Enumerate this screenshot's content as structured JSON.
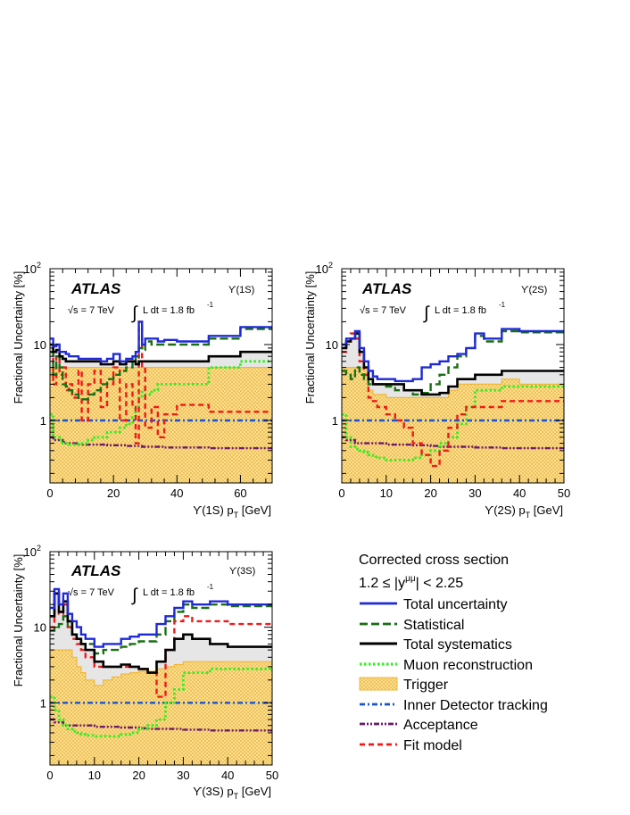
{
  "colors": {
    "total": "#1f2ad6",
    "statistical": "#1a6e14",
    "systematics": "#000000",
    "muon": "#33ee22",
    "trigger_fill": "#f9e4a2",
    "trigger_edge": "#f0b73a",
    "id_tracking": "#1a55cc",
    "acceptance": "#6a1a6e",
    "fit_model": "#ee1b1b",
    "systematics_fill": "#e6e6e6"
  },
  "legend": {
    "title": "Corrected cross section",
    "rapidity": "1.2 ≤ |y^μμ| < 2.25",
    "rapidity_pre": "1.2 ≤ |y",
    "rapidity_sup": "μμ",
    "rapidity_post": "| < 2.25",
    "entries": [
      {
        "key": "total",
        "label": "Total uncertainty",
        "style": "solid"
      },
      {
        "key": "statistical",
        "label": "Statistical",
        "style": "dash"
      },
      {
        "key": "systematics",
        "label": "Total systematics",
        "style": "solid-thick"
      },
      {
        "key": "muon",
        "label": "Muon reconstruction",
        "style": "dot"
      },
      {
        "key": "trigger",
        "label": "Trigger",
        "style": "hatch"
      },
      {
        "key": "id_tracking",
        "label": "Inner Detector tracking",
        "style": "dashdot"
      },
      {
        "key": "acceptance",
        "label": "Acceptance",
        "style": "dashdotdot"
      },
      {
        "key": "fit_model",
        "label": "Fit model",
        "style": "dash"
      }
    ]
  },
  "annotations": {
    "atlas": "ATLAS",
    "energy": "√s = 7 TeV",
    "lumi": "L dt = 1.8 fb",
    "lumi_sup": "-1",
    "integral": "∫"
  },
  "chart_data": [
    {
      "type": "line",
      "state_label": "ϒ(1S)",
      "ylabel": "Fractional Uncertainty [%]",
      "xlabel_main": "ϒ(1S) p",
      "xlabel_sub": "T",
      "xlabel_unit": " [GeV]",
      "yscale": "log",
      "xlim": [
        0,
        70
      ],
      "ylim": [
        0.15,
        100
      ],
      "xticks": [
        0,
        20,
        40,
        60
      ],
      "edges": [
        0,
        1,
        2,
        3,
        4,
        5,
        6,
        7,
        8,
        9,
        10,
        12,
        14,
        16,
        18,
        20,
        22,
        24,
        26,
        27,
        28,
        29,
        30,
        32,
        34,
        36,
        40,
        50,
        60,
        70
      ],
      "series": {
        "total": [
          12,
          9.5,
          10,
          8,
          8,
          7.5,
          7,
          7,
          7,
          6.5,
          6.5,
          6.5,
          6.5,
          6,
          6.5,
          7.5,
          6,
          6.5,
          7,
          8,
          20,
          10,
          12,
          12,
          11,
          11.5,
          11,
          13,
          17
        ],
        "statistical": [
          8,
          4,
          7,
          5,
          3,
          2.8,
          2.5,
          2.3,
          2.2,
          1.9,
          1.9,
          2.2,
          2.5,
          3,
          3.5,
          4,
          4.5,
          5,
          6,
          7,
          9,
          8.5,
          11,
          10,
          10,
          10,
          10,
          12,
          16
        ],
        "systematics": [
          10,
          8,
          8.5,
          7,
          6.5,
          6,
          6,
          6,
          6,
          6,
          6,
          6,
          6,
          5.5,
          5.5,
          6,
          5.5,
          6,
          6,
          5.5,
          6,
          6,
          6,
          6,
          6,
          6,
          6,
          7,
          8
        ],
        "muon": [
          1.2,
          0.6,
          0.6,
          0.55,
          0.5,
          0.5,
          0.48,
          0.48,
          0.48,
          0.5,
          0.5,
          0.55,
          0.6,
          0.6,
          0.7,
          0.7,
          0.8,
          0.9,
          1.1,
          1.5,
          2,
          2.5,
          2.2,
          2.5,
          3,
          3,
          3,
          5,
          6
        ],
        "trigger": [
          5,
          5,
          5,
          5,
          5,
          5,
          5,
          5,
          5,
          5,
          5,
          5,
          5,
          5,
          5,
          5,
          5,
          5,
          5,
          5,
          5,
          5,
          5,
          5,
          5,
          5,
          5,
          5,
          5
        ],
        "id_tracking": [
          1,
          1,
          1,
          1,
          1,
          1,
          1,
          1,
          1,
          1,
          1,
          1,
          1,
          1,
          1,
          1,
          1,
          1,
          1,
          1,
          1,
          1,
          1,
          1,
          1,
          1,
          1,
          1,
          1
        ],
        "acceptance": [
          0.6,
          0.55,
          0.55,
          0.55,
          0.52,
          0.5,
          0.5,
          0.5,
          0.5,
          0.48,
          0.48,
          0.48,
          0.48,
          0.48,
          0.47,
          0.47,
          0.47,
          0.46,
          0.46,
          0.46,
          0.46,
          0.45,
          0.45,
          0.45,
          0.45,
          0.44,
          0.44,
          0.43,
          0.43
        ],
        "fit_model": [
          8,
          3,
          7,
          4,
          5,
          2.5,
          3,
          2,
          2,
          4.5,
          1,
          3,
          4.5,
          1.5,
          3,
          5,
          1,
          3,
          1.5,
          0.5,
          20,
          5,
          0.8,
          1.5,
          0.6,
          1.2,
          1.6,
          1.3,
          1.3
        ]
      }
    },
    {
      "type": "line",
      "state_label": "ϒ(2S)",
      "ylabel": "Fractional Uncertainty [%]",
      "xlabel_main": "ϒ(2S) p",
      "xlabel_sub": "T",
      "xlabel_unit": " [GeV]",
      "yscale": "log",
      "xlim": [
        0,
        50
      ],
      "ylim": [
        0.15,
        100
      ],
      "xticks": [
        0,
        10,
        20,
        30,
        40,
        50
      ],
      "edges": [
        0,
        1,
        2,
        3,
        4,
        5,
        6,
        7,
        8,
        10,
        12,
        14,
        16,
        18,
        20,
        22,
        24,
        26,
        28,
        30,
        32,
        36,
        40,
        50
      ],
      "series": {
        "total": [
          10,
          12,
          12,
          15,
          9,
          6,
          4.5,
          3.8,
          3.5,
          3.5,
          3.3,
          3.3,
          3.5,
          5,
          5.5,
          6,
          7,
          7.5,
          9,
          14,
          12,
          16,
          15
        ],
        "statistical": [
          4.5,
          4,
          3.5,
          5,
          4,
          3.5,
          3,
          3,
          3,
          2.8,
          2.5,
          2.5,
          2.2,
          2.3,
          3,
          4,
          5,
          7,
          9,
          13,
          11,
          15,
          14.5
        ],
        "systematics": [
          9,
          11,
          12,
          14,
          8,
          5,
          3.5,
          3,
          3,
          3,
          3,
          2.5,
          2.5,
          2.2,
          2.2,
          2.3,
          2.8,
          3.5,
          3.5,
          4,
          4,
          4.5,
          4.5
        ],
        "muon": [
          1.2,
          0.6,
          0.45,
          0.42,
          0.4,
          0.38,
          0.35,
          0.33,
          0.32,
          0.3,
          0.3,
          0.3,
          0.32,
          0.35,
          0.4,
          0.5,
          0.6,
          0.9,
          1.5,
          2.5,
          2.5,
          2.8,
          2.8
        ],
        "trigger": [
          5,
          5,
          5,
          5,
          5,
          5,
          2.5,
          2.2,
          2.2,
          2,
          2,
          2,
          2,
          2,
          2,
          2,
          2.5,
          3,
          3,
          3,
          3,
          3.5,
          3
        ],
        "id_tracking": [
          1,
          1,
          1,
          1,
          1,
          1,
          1,
          1,
          1,
          1,
          1,
          1,
          1,
          1,
          1,
          1,
          1,
          1,
          1,
          1,
          1,
          1,
          1
        ],
        "acceptance": [
          0.6,
          0.55,
          0.55,
          0.5,
          0.5,
          0.5,
          0.5,
          0.5,
          0.5,
          0.48,
          0.48,
          0.48,
          0.47,
          0.47,
          0.46,
          0.45,
          0.45,
          0.45,
          0.45,
          0.44,
          0.44,
          0.43,
          0.43
        ],
        "fit_model": [
          8,
          11,
          14,
          12,
          6,
          4,
          2,
          1.8,
          1.5,
          1.2,
          1,
          0.8,
          0.5,
          0.35,
          0.25,
          0.4,
          0.8,
          1.2,
          1.5,
          1.5,
          1.5,
          1.8,
          1.8
        ]
      }
    },
    {
      "type": "line",
      "state_label": "ϒ(3S)",
      "ylabel": "Fractional Uncertainty [%]",
      "xlabel_main": "ϒ(3S) p",
      "xlabel_sub": "T",
      "xlabel_unit": " [GeV]",
      "yscale": "log",
      "xlim": [
        0,
        50
      ],
      "ylim": [
        0.15,
        100
      ],
      "xticks": [
        0,
        10,
        20,
        30,
        40,
        50
      ],
      "edges": [
        0,
        1,
        2,
        3,
        4,
        5,
        6,
        7,
        8,
        10,
        12,
        14,
        16,
        18,
        20,
        22,
        24,
        26,
        28,
        30,
        32,
        36,
        40,
        50
      ],
      "series": {
        "total": [
          18,
          32,
          20,
          28,
          15,
          12,
          10,
          8,
          7,
          5.5,
          6,
          6,
          7,
          7.5,
          8,
          8,
          11,
          14,
          18,
          22,
          20,
          22,
          20
        ],
        "statistical": [
          9,
          10,
          11,
          14,
          10,
          8,
          7,
          6,
          6,
          4.5,
          5,
          5,
          5.5,
          6,
          6.5,
          6.5,
          8,
          12,
          16,
          20,
          18,
          20,
          19
        ],
        "systematics": [
          14,
          28,
          16,
          22,
          12,
          8,
          7,
          6,
          5,
          3.5,
          3,
          3,
          3.2,
          3,
          2.8,
          2.5,
          3.5,
          5,
          7,
          8,
          7,
          6,
          5.5
        ],
        "muon": [
          1.2,
          0.8,
          0.6,
          0.5,
          0.45,
          0.42,
          0.4,
          0.38,
          0.37,
          0.36,
          0.36,
          0.36,
          0.38,
          0.4,
          0.45,
          0.5,
          0.6,
          1,
          1.5,
          2.5,
          2.5,
          2.8,
          2.8
        ],
        "trigger": [
          5,
          5,
          5,
          5,
          5,
          4,
          3,
          2.5,
          2,
          1.7,
          2,
          2.2,
          2.4,
          2.5,
          2.6,
          2.6,
          2.8,
          3,
          3.2,
          3.5,
          3.5,
          3.5,
          3.5
        ],
        "id_tracking": [
          1,
          1,
          1,
          1,
          1,
          1,
          1,
          1,
          1,
          1,
          1,
          1,
          1,
          1,
          1,
          1,
          1,
          1,
          1,
          1,
          1,
          1,
          1
        ],
        "acceptance": [
          0.6,
          0.55,
          0.55,
          0.5,
          0.5,
          0.5,
          0.5,
          0.5,
          0.5,
          0.48,
          0.48,
          0.48,
          0.47,
          0.47,
          0.46,
          0.45,
          0.45,
          0.45,
          0.45,
          0.44,
          0.44,
          0.43,
          0.43
        ],
        "fit_model": [
          10,
          30,
          15,
          20,
          10,
          7,
          6,
          5,
          4,
          3,
          3,
          3,
          3,
          3,
          2.8,
          2.5,
          1.2,
          5,
          12,
          14,
          12,
          12,
          11
        ]
      }
    }
  ]
}
